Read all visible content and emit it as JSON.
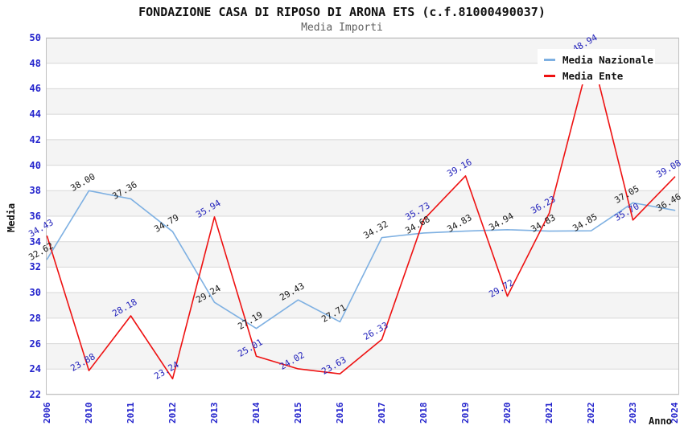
{
  "header": {
    "title": "FONDAZIONE CASA DI RIPOSO DI ARONA ETS (c.f.81000490037)",
    "subtitle": "Media Importi"
  },
  "legend": {
    "position": "top-right",
    "items": [
      {
        "label": "Media Nazionale",
        "color": "#7EB0E2"
      },
      {
        "label": "Media Ente",
        "color": "#EE1111"
      }
    ]
  },
  "axes": {
    "y_title": "Media",
    "x_title": "Anno",
    "y_ticks": [
      22,
      24,
      26,
      28,
      30,
      32,
      34,
      36,
      38,
      40,
      42,
      44,
      46,
      48,
      50
    ],
    "x_ticks": [
      "2006",
      "2010",
      "2011",
      "2012",
      "2013",
      "2014",
      "2015",
      "2016",
      "2017",
      "2018",
      "2019",
      "2020",
      "2021",
      "2022",
      "2023",
      "2024"
    ]
  },
  "chart_data": {
    "type": "line",
    "title": "FONDAZIONE CASA DI RIPOSO DI ARONA ETS (c.f.81000490037)",
    "subtitle": "Media Importi",
    "xlabel": "Anno",
    "ylabel": "Media",
    "ylim": [
      22,
      50
    ],
    "y_tick_step": 2,
    "grid": true,
    "banded_background": true,
    "legend_position": "top-right",
    "categories": [
      "2006",
      "2010",
      "2011",
      "2012",
      "2013",
      "2014",
      "2015",
      "2016",
      "2017",
      "2018",
      "2019",
      "2020",
      "2021",
      "2022",
      "2023",
      "2024"
    ],
    "series": [
      {
        "name": "Media Nazionale",
        "color": "#7EB0E2",
        "label_color": "#1A1A1A",
        "values": [
          32.62,
          38.0,
          37.36,
          34.79,
          29.24,
          27.19,
          29.43,
          27.71,
          34.32,
          34.68,
          34.83,
          34.94,
          34.83,
          34.85,
          37.05,
          36.46
        ]
      },
      {
        "name": "Media Ente",
        "color": "#EE1111",
        "label_color": "#2222BB",
        "values": [
          34.43,
          23.88,
          28.18,
          23.24,
          35.94,
          25.01,
          24.02,
          23.63,
          26.33,
          35.73,
          39.16,
          29.72,
          36.23,
          48.94,
          35.7,
          39.08
        ]
      }
    ]
  },
  "colors": {
    "band": "#F4F4F4",
    "grid": "#D8D8D8",
    "plot_border": "#C0C0C0",
    "axis_tick_label": "#2222CC",
    "title_text": "#111111",
    "subtitle_text": "#5F5F5F"
  }
}
